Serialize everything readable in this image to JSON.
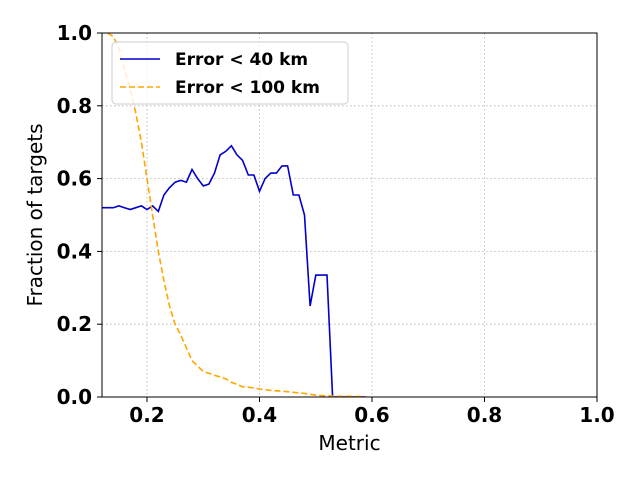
{
  "chart_data": {
    "type": "line",
    "title": "",
    "xlabel": "Metric",
    "ylabel": "Fraction of targets",
    "xlim": [
      0.12,
      1.0
    ],
    "ylim": [
      0.0,
      1.0
    ],
    "xticks": [
      0.2,
      0.4,
      0.6,
      0.8,
      1.0
    ],
    "xtick_labels": [
      "0.2",
      "0.4",
      "0.6",
      "0.8",
      "1.0"
    ],
    "yticks": [
      0.0,
      0.2,
      0.4,
      0.6,
      0.8,
      1.0
    ],
    "ytick_labels": [
      "0.0",
      "0.2",
      "0.4",
      "0.6",
      "0.8",
      "1.0"
    ],
    "grid": true,
    "legend_position": "top-left",
    "series": [
      {
        "name": "Error < 40 km",
        "color": "#0000cc",
        "style": "solid",
        "x": [
          0.12,
          0.13,
          0.14,
          0.15,
          0.16,
          0.17,
          0.18,
          0.19,
          0.2,
          0.21,
          0.22,
          0.23,
          0.24,
          0.25,
          0.26,
          0.27,
          0.28,
          0.29,
          0.3,
          0.31,
          0.32,
          0.33,
          0.34,
          0.35,
          0.36,
          0.37,
          0.38,
          0.39,
          0.4,
          0.41,
          0.42,
          0.43,
          0.44,
          0.45,
          0.46,
          0.47,
          0.48,
          0.49,
          0.5,
          0.51,
          0.52,
          0.53,
          0.54,
          0.55,
          0.56,
          0.57,
          0.58,
          0.59
        ],
        "y": [
          0.52,
          0.52,
          0.52,
          0.525,
          0.52,
          0.515,
          0.52,
          0.525,
          0.515,
          0.525,
          0.51,
          0.555,
          0.575,
          0.59,
          0.595,
          0.59,
          0.625,
          0.6,
          0.58,
          0.585,
          0.615,
          0.665,
          0.675,
          0.69,
          0.665,
          0.65,
          0.61,
          0.61,
          0.565,
          0.6,
          0.615,
          0.615,
          0.635,
          0.635,
          0.555,
          0.555,
          0.5,
          0.25,
          0.335,
          0.335,
          0.335,
          0.0,
          0.0,
          0.0,
          0.0,
          0.0,
          0.0,
          0.0
        ]
      },
      {
        "name": "Error < 100 km",
        "color": "#ffa500",
        "style": "dashed",
        "x": [
          0.13,
          0.14,
          0.15,
          0.16,
          0.17,
          0.18,
          0.19,
          0.2,
          0.21,
          0.22,
          0.23,
          0.24,
          0.25,
          0.26,
          0.27,
          0.28,
          0.29,
          0.3,
          0.31,
          0.32,
          0.33,
          0.34,
          0.35,
          0.36,
          0.37,
          0.38,
          0.39,
          0.4,
          0.42,
          0.44,
          0.46,
          0.48,
          0.5,
          0.52,
          0.54,
          0.56,
          0.58,
          0.59
        ],
        "y": [
          1.0,
          0.99,
          0.96,
          0.9,
          0.85,
          0.78,
          0.7,
          0.6,
          0.5,
          0.4,
          0.32,
          0.25,
          0.2,
          0.17,
          0.135,
          0.1,
          0.085,
          0.07,
          0.065,
          0.06,
          0.055,
          0.05,
          0.04,
          0.035,
          0.028,
          0.027,
          0.025,
          0.022,
          0.018,
          0.016,
          0.013,
          0.01,
          0.005,
          0.003,
          0.002,
          0.002,
          0.001,
          0.0
        ]
      }
    ]
  }
}
